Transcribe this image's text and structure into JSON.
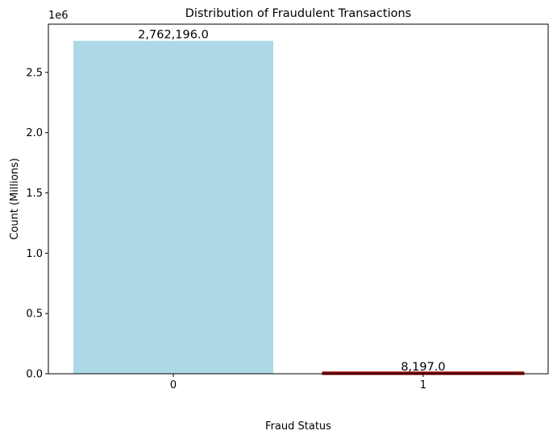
{
  "chart_data": {
    "type": "bar",
    "title": "Distribution of Fraudulent Transactions",
    "xlabel": "Fraud Status",
    "ylabel": "Count (Millions)",
    "y_offset_label": "1e6",
    "categories": [
      "0",
      "1"
    ],
    "values": [
      2762196,
      8197
    ],
    "data_labels": [
      "2,762,196.0",
      "8,197.0"
    ],
    "bar_colors": [
      "#add8e6",
      "#8b0000"
    ],
    "ylim": [
      0,
      2900310
    ],
    "yticks": [
      0,
      500000,
      1000000,
      1500000,
      2000000,
      2500000
    ],
    "ytick_labels": [
      "0.0",
      "0.5",
      "1.0",
      "1.5",
      "2.0",
      "2.5"
    ],
    "grid": false,
    "legend": "none"
  }
}
